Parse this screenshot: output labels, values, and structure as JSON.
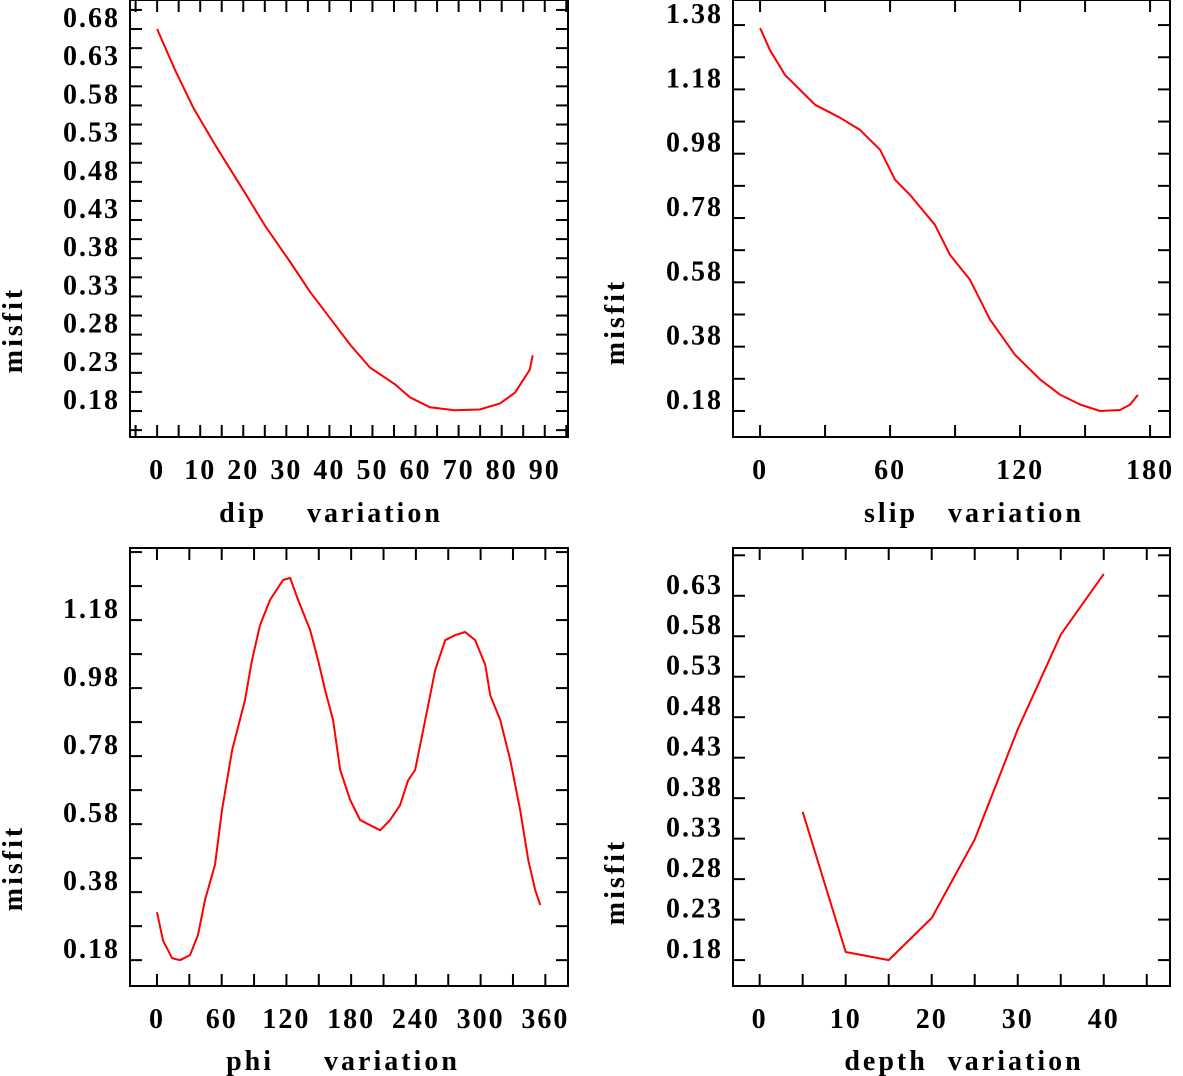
{
  "chart_data": [
    {
      "type": "line",
      "title": "",
      "xlabel": "dip    variation",
      "ylabel": "misfit",
      "xlim": [
        -6.3,
        95.4
      ],
      "ylim": [
        0.146,
        0.718
      ],
      "xticks": [
        0,
        10,
        20,
        30,
        40,
        50,
        60,
        70,
        80,
        90
      ],
      "xtick_labels": [
        "0",
        "10",
        "20",
        "30",
        "40",
        "50",
        "60",
        "70",
        "80",
        "90"
      ],
      "xminor_step": 5,
      "yticks": [
        0.18,
        0.23,
        0.28,
        0.33,
        0.38,
        0.43,
        0.48,
        0.53,
        0.58,
        0.63,
        0.68
      ],
      "ytick_labels": [
        "0.18",
        "0.23",
        "0.28",
        "0.33",
        "0.38",
        "0.43",
        "0.48",
        "0.53",
        "0.58",
        "0.63",
        "0.68"
      ],
      "yminor_step": 0.025,
      "grid": false,
      "color": "#ff0000",
      "x": [
        0,
        4.2,
        8.4,
        13.5,
        20,
        25,
        30.9,
        35.5,
        40.1,
        44.8,
        49.4,
        55.2,
        58.7,
        63.3,
        69.1,
        74.9,
        79.6,
        83.1,
        86.5,
        87.2
      ],
      "y": [
        0.68,
        0.626,
        0.577,
        0.528,
        0.469,
        0.423,
        0.375,
        0.336,
        0.302,
        0.267,
        0.237,
        0.215,
        0.198,
        0.185,
        0.181,
        0.182,
        0.19,
        0.204,
        0.234,
        0.253
      ]
    },
    {
      "type": "line",
      "title": "",
      "xlabel": "slip   variation",
      "ylabel": "misfit",
      "xlim": [
        -12.5,
        189.2
      ],
      "ylim": [
        0.099,
        1.458
      ],
      "xticks": [
        0,
        60,
        120,
        180
      ],
      "xtick_labels": [
        "0",
        "60",
        "120",
        "180"
      ],
      "xminor_step": 30,
      "yticks": [
        0.18,
        0.38,
        0.58,
        0.78,
        0.98,
        1.18,
        1.38
      ],
      "ytick_labels": [
        "0.18",
        "0.38",
        "0.58",
        "0.78",
        "0.98",
        "1.18",
        "1.38"
      ],
      "yminor_step": 0.1,
      "grid": false,
      "color": "#ff0000",
      "x": [
        0,
        4.6,
        11.5,
        18.5,
        25.4,
        36.9,
        46.1,
        55.4,
        62.3,
        69.2,
        80.7,
        87.6,
        96.9,
        106.1,
        117.6,
        129.2,
        138.4,
        147.7,
        156.9,
        166.1,
        170.7,
        174.4
      ],
      "y": [
        1.371,
        1.302,
        1.225,
        1.178,
        1.132,
        1.092,
        1.054,
        0.992,
        0.899,
        0.852,
        0.759,
        0.666,
        0.588,
        0.464,
        0.355,
        0.278,
        0.231,
        0.2,
        0.18,
        0.183,
        0.199,
        0.23
      ]
    },
    {
      "type": "line",
      "title": "",
      "xlabel": "phi     variation",
      "ylabel": "misfit",
      "xlim": [
        -25,
        381
      ],
      "ylim": [
        0.104,
        1.392
      ],
      "xticks": [
        0,
        60,
        120,
        180,
        240,
        300,
        360
      ],
      "xtick_labels": [
        "0",
        "60",
        "120",
        "180",
        "240",
        "300",
        "360"
      ],
      "xminor_step": 30,
      "yticks": [
        0.18,
        0.38,
        0.58,
        0.78,
        0.98,
        1.18
      ],
      "ytick_labels": [
        "0.18",
        "0.38",
        "0.58",
        "0.78",
        "0.98",
        "1.18"
      ],
      "yminor_step": 0.1,
      "grid": false,
      "color": "#ff0000",
      "x": [
        0,
        5.6,
        13.9,
        21.3,
        30.6,
        38,
        44.5,
        53.8,
        60.3,
        69.6,
        81.6,
        88.1,
        95.5,
        104.8,
        116.9,
        123.4,
        130.8,
        141.9,
        149.4,
        155.8,
        163.3,
        169.8,
        179.1,
        188.3,
        199.4,
        206.9,
        216.1,
        225.4,
        232.8,
        239.3,
        248.6,
        257.9,
        267.2,
        276.4,
        285.7,
        295,
        304.3,
        308.9,
        318.2,
        327.5,
        336.7,
        344.2,
        350.6,
        355.3
      ],
      "y": [
        0.321,
        0.238,
        0.186,
        0.18,
        0.195,
        0.254,
        0.357,
        0.46,
        0.621,
        0.797,
        0.945,
        1.062,
        1.165,
        1.239,
        1.298,
        1.304,
        1.239,
        1.151,
        1.062,
        0.974,
        0.886,
        0.739,
        0.651,
        0.592,
        0.574,
        0.562,
        0.592,
        0.636,
        0.709,
        0.739,
        0.886,
        1.033,
        1.121,
        1.136,
        1.145,
        1.121,
        1.048,
        0.959,
        0.886,
        0.768,
        0.621,
        0.474,
        0.386,
        0.342
      ]
    },
    {
      "type": "line",
      "title": "",
      "xlabel": "depth  variation",
      "ylabel": "misfit",
      "xlim": [
        -3.1,
        47.7
      ],
      "ylim": [
        0.148,
        0.689
      ],
      "xticks": [
        0,
        10,
        20,
        30,
        40
      ],
      "xtick_labels": [
        "0",
        "10",
        "20",
        "30",
        "40"
      ],
      "xminor_step": 5,
      "yticks": [
        0.18,
        0.23,
        0.28,
        0.33,
        0.38,
        0.43,
        0.48,
        0.53,
        0.58,
        0.63
      ],
      "ytick_labels": [
        "0.18",
        "0.23",
        "0.28",
        "0.33",
        "0.38",
        "0.43",
        "0.48",
        "0.53",
        "0.58",
        "0.63"
      ],
      "yminor_step": 0.05,
      "grid": false,
      "color": "#ff0000",
      "x": [
        5,
        10,
        15,
        20,
        25,
        30,
        35,
        40
      ],
      "y": [
        0.363,
        0.19,
        0.18,
        0.232,
        0.329,
        0.465,
        0.582,
        0.657
      ]
    }
  ]
}
